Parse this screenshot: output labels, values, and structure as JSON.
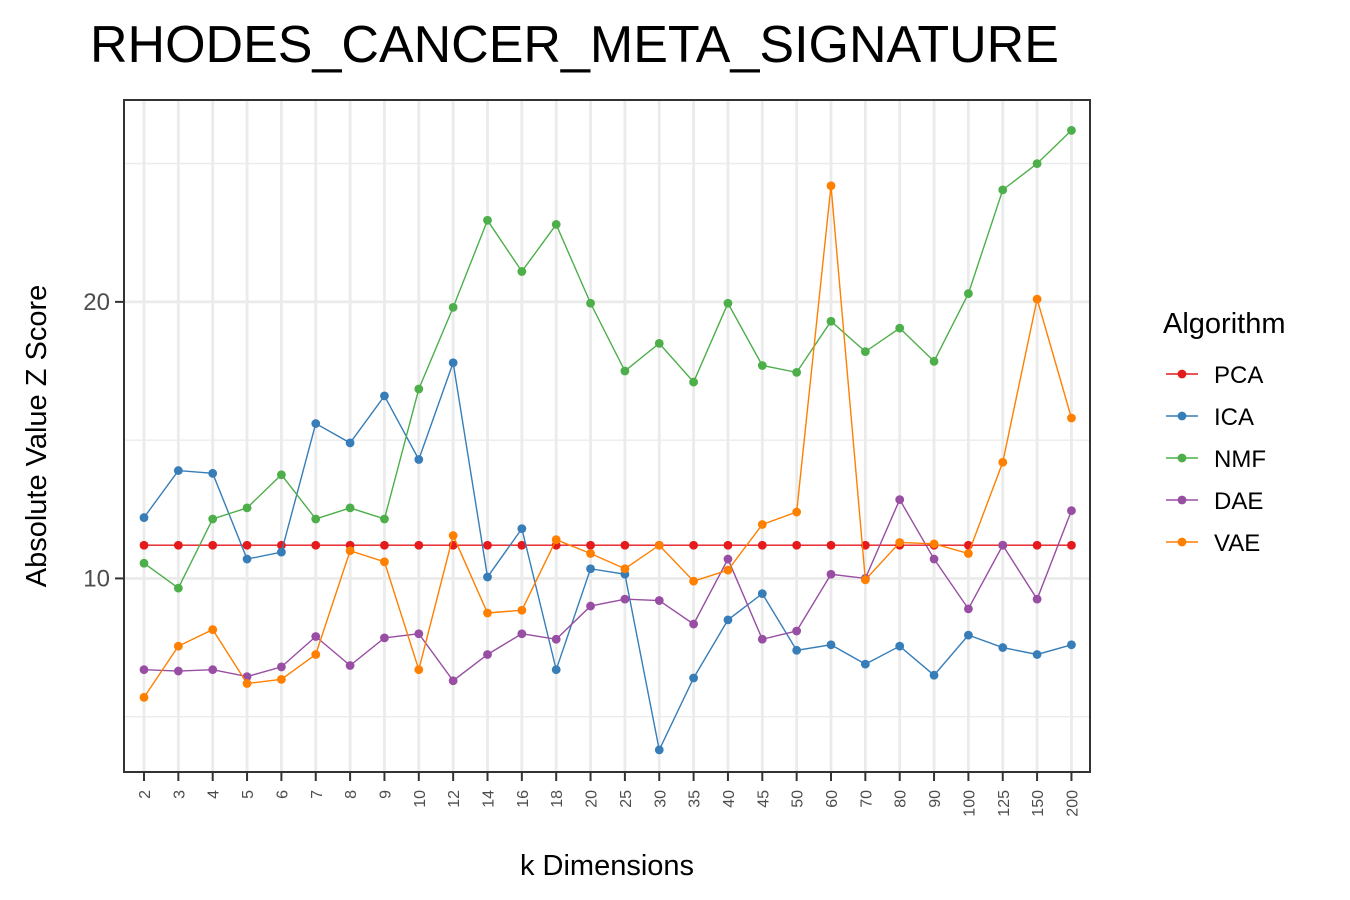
{
  "chart_data": {
    "type": "line",
    "title": "RHODES_CANCER_META_SIGNATURE",
    "xlabel": "k Dimensions",
    "ylabel": "Absolute Value Z Score",
    "categories": [
      "2",
      "3",
      "4",
      "5",
      "6",
      "7",
      "8",
      "9",
      "10",
      "12",
      "14",
      "16",
      "18",
      "20",
      "25",
      "30",
      "35",
      "40",
      "45",
      "50",
      "60",
      "70",
      "80",
      "90",
      "100",
      "125",
      "150",
      "200"
    ],
    "ylim": [
      3.0,
      27.3
    ],
    "yticks": [
      10,
      20
    ],
    "yticks_labels": [
      "10",
      "20"
    ],
    "grid": true,
    "legend": {
      "title": "Algorithm",
      "placement": "right"
    },
    "series": [
      {
        "name": "PCA",
        "color": "#e41a1c",
        "values": [
          11.2,
          11.2,
          11.2,
          11.2,
          11.2,
          11.2,
          11.2,
          11.2,
          11.2,
          11.2,
          11.2,
          11.2,
          11.2,
          11.2,
          11.2,
          11.2,
          11.2,
          11.2,
          11.2,
          11.2,
          11.2,
          11.2,
          11.2,
          11.2,
          11.2,
          11.2,
          11.2,
          11.2
        ]
      },
      {
        "name": "ICA",
        "color": "#377eb8",
        "values": [
          12.2,
          13.9,
          13.8,
          10.7,
          10.95,
          15.6,
          14.9,
          16.6,
          14.3,
          17.8,
          10.05,
          11.8,
          6.7,
          10.35,
          10.15,
          3.8,
          6.4,
          8.5,
          9.45,
          7.4,
          7.6,
          6.9,
          7.55,
          6.5,
          7.95,
          7.5,
          7.25,
          7.6
        ]
      },
      {
        "name": "NMF",
        "color": "#4daf4a",
        "values": [
          10.55,
          9.65,
          12.15,
          12.55,
          13.75,
          12.15,
          12.55,
          12.15,
          16.85,
          19.8,
          22.95,
          21.1,
          22.8,
          19.95,
          17.5,
          18.5,
          17.1,
          19.95,
          17.7,
          17.45,
          19.3,
          18.2,
          19.05,
          17.85,
          20.3,
          24.05,
          25.0,
          26.2
        ]
      },
      {
        "name": "DAE",
        "color": "#984ea3",
        "values": [
          6.7,
          6.65,
          6.7,
          6.45,
          6.8,
          7.9,
          6.85,
          7.85,
          8.0,
          6.3,
          7.25,
          8.0,
          7.8,
          9.0,
          9.25,
          9.2,
          8.35,
          10.7,
          7.8,
          8.1,
          10.15,
          10.0,
          12.85,
          10.7,
          8.9,
          11.2,
          9.25,
          12.45
        ]
      },
      {
        "name": "VAE",
        "color": "#ff7f00",
        "values": [
          5.7,
          7.55,
          8.15,
          6.2,
          6.35,
          7.25,
          11.0,
          10.6,
          6.7,
          11.55,
          8.75,
          8.85,
          11.4,
          10.9,
          10.35,
          11.2,
          9.9,
          10.3,
          11.95,
          12.4,
          24.2,
          9.95,
          11.3,
          11.25,
          10.9,
          14.2,
          20.1,
          15.8
        ]
      }
    ]
  }
}
